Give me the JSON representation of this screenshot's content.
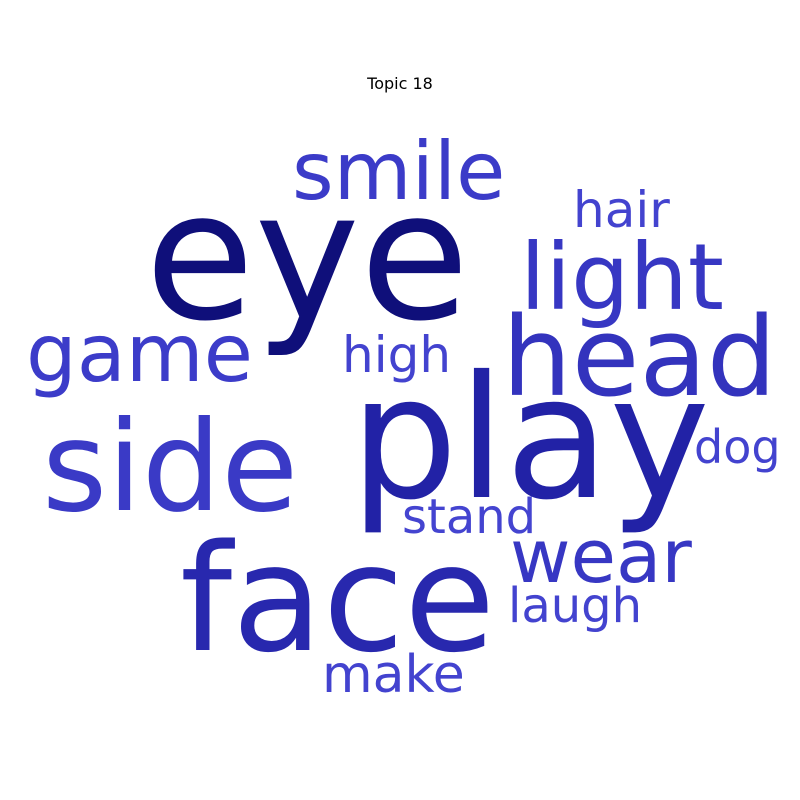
{
  "title": "Topic 18",
  "words": [
    {
      "text": "eye",
      "color": "#0f0f7a"
    },
    {
      "text": "play",
      "color": "#2222a6"
    },
    {
      "text": "face",
      "color": "#2828ae"
    },
    {
      "text": "head",
      "color": "#3333bd"
    },
    {
      "text": "side",
      "color": "#3a3ac6"
    },
    {
      "text": "smile",
      "color": "#3b3bc8"
    },
    {
      "text": "light",
      "color": "#3737c3"
    },
    {
      "text": "game",
      "color": "#3c3cc9"
    },
    {
      "text": "wear",
      "color": "#3737c3"
    },
    {
      "text": "hair",
      "color": "#4343cf"
    },
    {
      "text": "high",
      "color": "#4343cf"
    },
    {
      "text": "dog",
      "color": "#4343cf"
    },
    {
      "text": "stand",
      "color": "#4444d0"
    },
    {
      "text": "laugh",
      "color": "#4343cf"
    },
    {
      "text": "make",
      "color": "#4343cf"
    }
  ]
}
